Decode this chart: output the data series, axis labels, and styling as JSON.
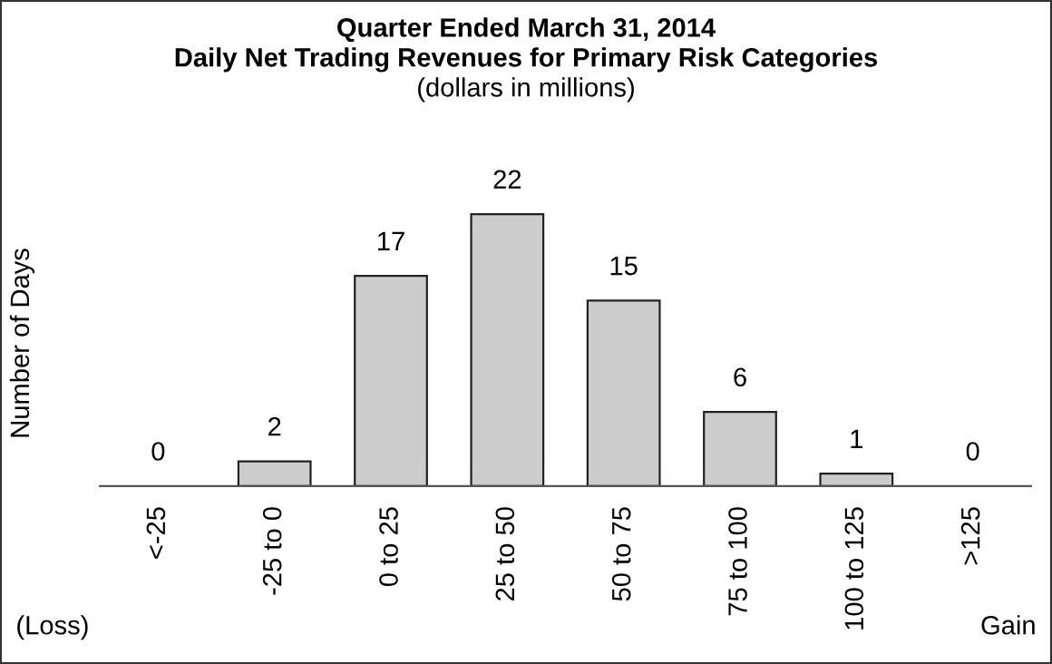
{
  "chart_data": {
    "type": "bar",
    "title": "Quarter Ended March 31, 2014",
    "subtitle": "Daily Net Trading Revenues for Primary Risk Categories",
    "ylabel": "Number of Days",
    "annotations": [
      "(dollars in millions)",
      "(Loss)",
      "Gain"
    ],
    "categories": [
      "<-25",
      "-25 to 0",
      "0 to 25",
      "25 to 50",
      "50 to 75",
      "75 to 100",
      "100 to 125",
      ">125"
    ],
    "values": [
      0,
      2,
      17,
      22,
      15,
      6,
      1,
      0
    ],
    "color": "#cccccc",
    "data_labels": true,
    "grid": false,
    "legend": false
  }
}
